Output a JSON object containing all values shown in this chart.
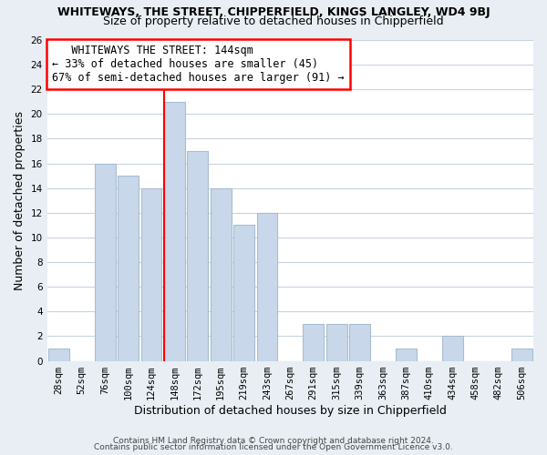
{
  "title": "WHITEWAYS, THE STREET, CHIPPERFIELD, KINGS LANGLEY, WD4 9BJ",
  "subtitle": "Size of property relative to detached houses in Chipperfield",
  "xlabel": "Distribution of detached houses by size in Chipperfield",
  "ylabel": "Number of detached properties",
  "footer_line1": "Contains HM Land Registry data © Crown copyright and database right 2024.",
  "footer_line2": "Contains public sector information licensed under the Open Government Licence v3.0.",
  "bin_labels": [
    "28sqm",
    "52sqm",
    "76sqm",
    "100sqm",
    "124sqm",
    "148sqm",
    "172sqm",
    "195sqm",
    "219sqm",
    "243sqm",
    "267sqm",
    "291sqm",
    "315sqm",
    "339sqm",
    "363sqm",
    "387sqm",
    "410sqm",
    "434sqm",
    "458sqm",
    "482sqm",
    "506sqm"
  ],
  "bar_values": [
    1,
    0,
    16,
    15,
    14,
    21,
    17,
    14,
    11,
    12,
    0,
    3,
    3,
    3,
    0,
    1,
    0,
    2,
    0,
    0,
    1
  ],
  "bar_color": "#c8d8ea",
  "bar_edge_color": "#a8bdd0",
  "vline_index": 5,
  "vline_color": "red",
  "annotation_title": "WHITEWAYS THE STREET: 144sqm",
  "annotation_line1": "← 33% of detached houses are smaller (45)",
  "annotation_line2": "67% of semi-detached houses are larger (91) →",
  "annotation_box_color": "white",
  "annotation_box_edge_color": "red",
  "ylim": [
    0,
    26
  ],
  "yticks": [
    0,
    2,
    4,
    6,
    8,
    10,
    12,
    14,
    16,
    18,
    20,
    22,
    24,
    26
  ],
  "background_color": "#e8eef4",
  "plot_background": "white",
  "grid_color": "#c8d4e0",
  "title_fontsize": 9,
  "subtitle_fontsize": 9,
  "xlabel_fontsize": 9,
  "ylabel_fontsize": 9,
  "tick_fontsize": 7.5,
  "footer_fontsize": 6.5,
  "annotation_fontsize": 8.5
}
